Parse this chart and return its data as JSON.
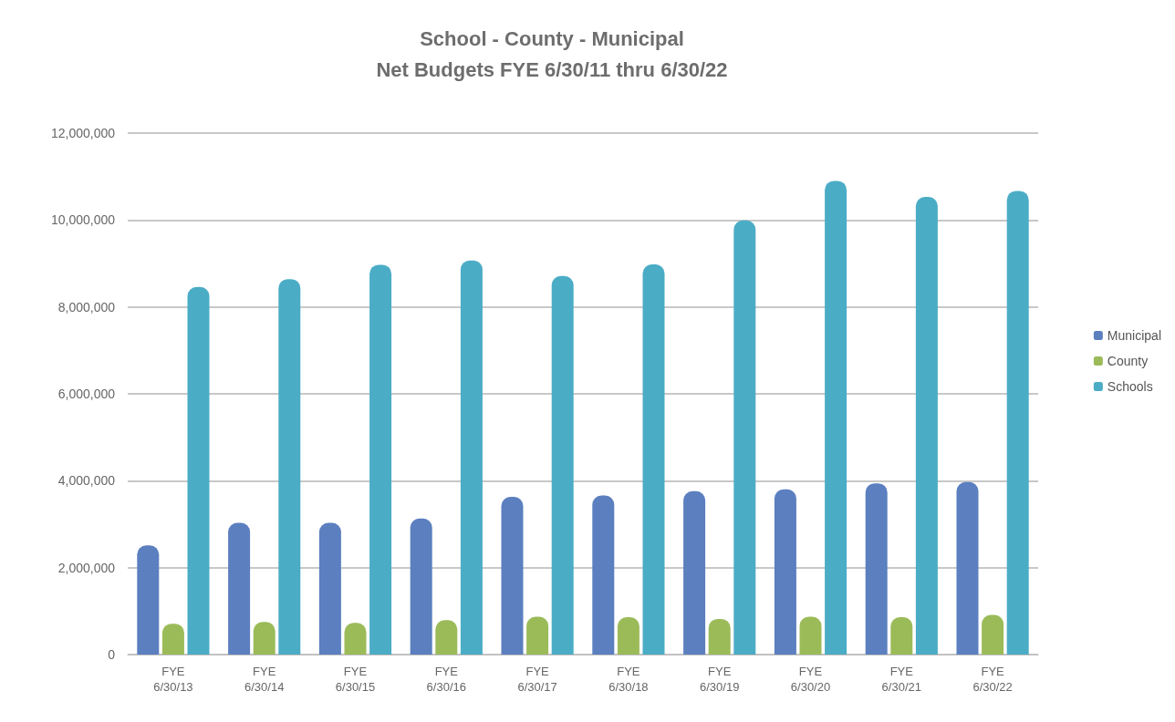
{
  "chart_data": {
    "type": "bar",
    "title": "School - County - Municipal\nNet Budgets FYE 6/30/11 thru 6/30/22",
    "categories": [
      "FYE\n6/30/13",
      "FYE\n6/30/14",
      "FYE\n6/30/15",
      "FYE\n6/30/16",
      "FYE\n6/30/17",
      "FYE\n6/30/18",
      "FYE\n6/30/19",
      "FYE\n6/30/20",
      "FYE\n6/30/21",
      "FYE\n6/30/22"
    ],
    "series": [
      {
        "name": "Municipal",
        "color": "#5b7fbf",
        "values": [
          2510000,
          3030000,
          3030000,
          3130000,
          3630000,
          3660000,
          3760000,
          3800000,
          3940000,
          3970000
        ]
      },
      {
        "name": "County",
        "color": "#9bbb59",
        "values": [
          710000,
          750000,
          730000,
          790000,
          870000,
          860000,
          820000,
          870000,
          860000,
          910000
        ]
      },
      {
        "name": "Schools",
        "color": "#4bacc6",
        "values": [
          8460000,
          8640000,
          8970000,
          9070000,
          8710000,
          8980000,
          9990000,
          10900000,
          10530000,
          10670000
        ]
      }
    ],
    "ylim": [
      0,
      12000000
    ],
    "yticks": [
      {
        "value": 0,
        "label": "0"
      },
      {
        "value": 2000000,
        "label": "2,000,000"
      },
      {
        "value": 4000000,
        "label": "4,000,000"
      },
      {
        "value": 6000000,
        "label": "6,000,000"
      },
      {
        "value": 8000000,
        "label": "8,000,000"
      },
      {
        "value": 10000000,
        "label": "10,000,000"
      },
      {
        "value": 12000000,
        "label": "12,000,000"
      }
    ],
    "grid": "y",
    "legend": "right"
  }
}
